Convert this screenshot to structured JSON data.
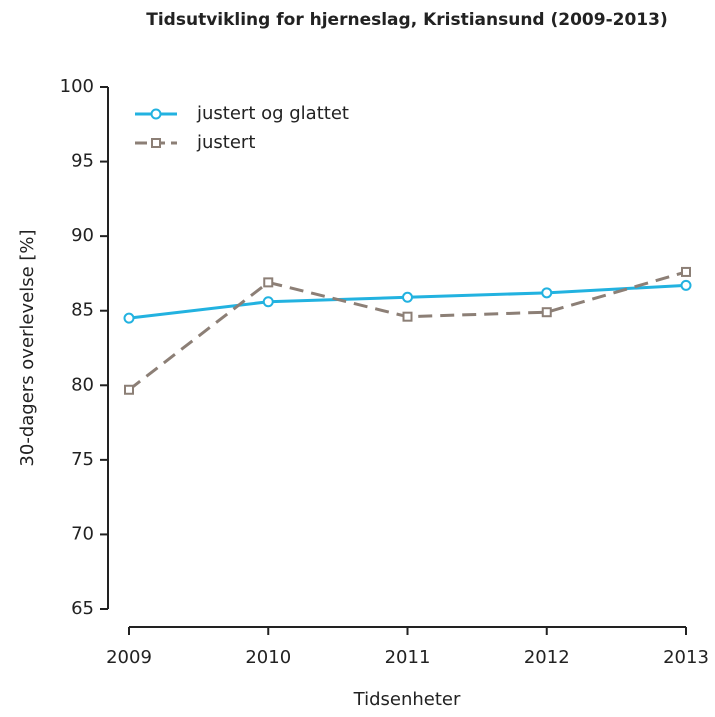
{
  "chart_data": {
    "type": "line",
    "title": "Tidsutvikling for hjerneslag, Kristiansund (2009-2013)",
    "x_label": "Tidsenheter",
    "y_label": "30-dagers overlevelse [%]",
    "x": [
      2009,
      2010,
      2011,
      2012,
      2013
    ],
    "xlim": [
      2009,
      2013
    ],
    "xticks": [
      2009,
      2010,
      2011,
      2012,
      2013
    ],
    "ylim": [
      65,
      100
    ],
    "yticks": [
      65,
      70,
      75,
      80,
      85,
      90,
      95,
      100
    ],
    "legend": "top-left",
    "series": [
      {
        "name": "justert og glattet",
        "color": "#22b2e0",
        "marker": "circle",
        "linestyle": "solid",
        "values": [
          84.5,
          85.6,
          85.9,
          86.2,
          86.7
        ]
      },
      {
        "name": "justert",
        "color": "#8c7f76",
        "marker": "square",
        "linestyle": "dashed",
        "values": [
          79.7,
          86.9,
          84.6,
          84.9,
          87.6
        ]
      }
    ]
  }
}
